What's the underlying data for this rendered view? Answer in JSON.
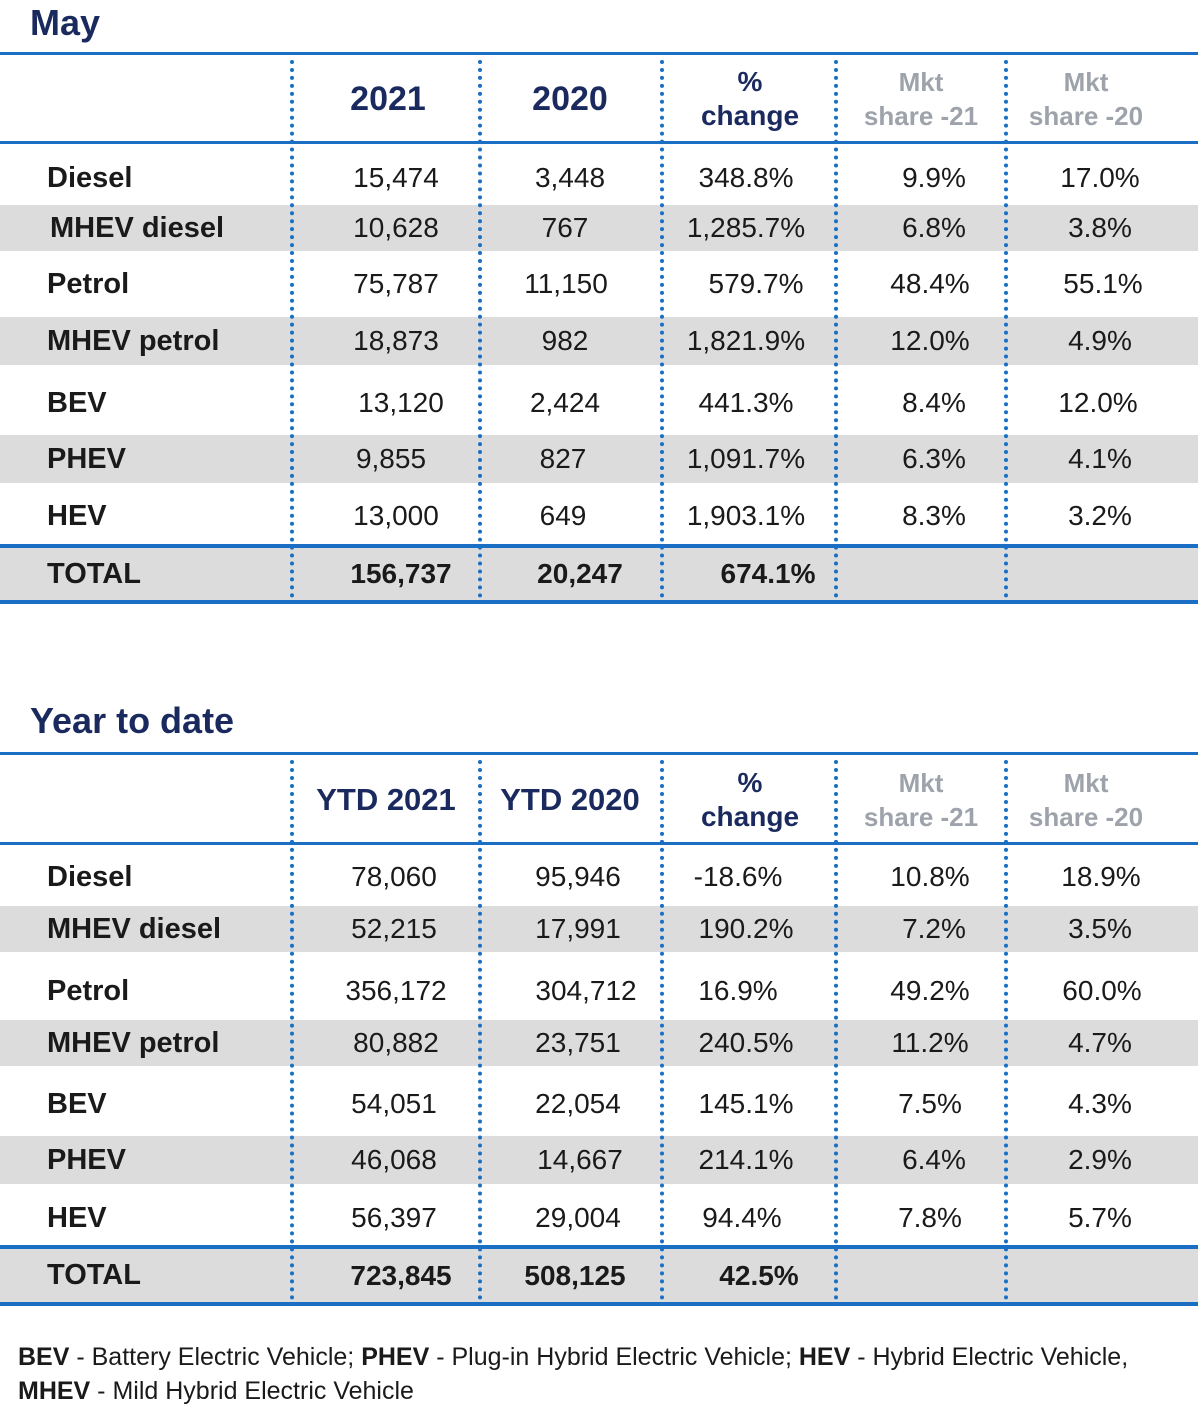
{
  "may": {
    "title": "May",
    "headers": {
      "col1": "2021",
      "col2": "2020",
      "change_line1": "%",
      "change_line2": "change",
      "mkt21_line1": "Mkt",
      "mkt21_line2": "share -21",
      "mkt20_line1": "Mkt",
      "mkt20_line2": "share -20"
    },
    "rows": [
      {
        "label": "Diesel",
        "y2021": "15,474",
        "y2020": "3,448",
        "change": "348.8%",
        "mkt21": "9.9%",
        "mkt20": "17.0%"
      },
      {
        "label": "MHEV diesel",
        "y2021": "10,628",
        "y2020": "767",
        "change": "1,285.7%",
        "mkt21": "6.8%",
        "mkt20": "3.8%"
      },
      {
        "label": "Petrol",
        "y2021": "75,787",
        "y2020": "11,150",
        "change": "579.7%",
        "mkt21": "48.4%",
        "mkt20": "55.1%"
      },
      {
        "label": "MHEV petrol",
        "y2021": "18,873",
        "y2020": "982",
        "change": "1,821.9%",
        "mkt21": "12.0%",
        "mkt20": "4.9%"
      },
      {
        "label": "BEV",
        "y2021": "13,120",
        "y2020": "2,424",
        "change": "441.3%",
        "mkt21": "8.4%",
        "mkt20": "12.0%"
      },
      {
        "label": "PHEV",
        "y2021": "9,855",
        "y2020": "827",
        "change": "1,091.7%",
        "mkt21": "6.3%",
        "mkt20": "4.1%"
      },
      {
        "label": "HEV",
        "y2021": "13,000",
        "y2020": "649",
        "change": "1,903.1%",
        "mkt21": "8.3%",
        "mkt20": "3.2%"
      }
    ],
    "total": {
      "label": "TOTAL",
      "y2021": "156,737",
      "y2020": "20,247",
      "change": "674.1%"
    }
  },
  "ytd": {
    "title": "Year to date",
    "headers": {
      "col1": "YTD 2021",
      "col2": "YTD 2020",
      "change_line1": "%",
      "change_line2": "change",
      "mkt21_line1": "Mkt",
      "mkt21_line2": "share -21",
      "mkt20_line1": "Mkt",
      "mkt20_line2": "share -20"
    },
    "rows": [
      {
        "label": "Diesel",
        "y2021": "78,060",
        "y2020": "95,946",
        "change": "-18.6%",
        "mkt21": "10.8%",
        "mkt20": "18.9%"
      },
      {
        "label": "MHEV diesel",
        "y2021": "52,215",
        "y2020": "17,991",
        "change": "190.2%",
        "mkt21": "7.2%",
        "mkt20": "3.5%"
      },
      {
        "label": "Petrol",
        "y2021": "356,172",
        "y2020": "304,712",
        "change": "16.9%",
        "mkt21": "49.2%",
        "mkt20": "60.0%"
      },
      {
        "label": "MHEV petrol",
        "y2021": "80,882",
        "y2020": "23,751",
        "change": "240.5%",
        "mkt21": "11.2%",
        "mkt20": "4.7%"
      },
      {
        "label": "BEV",
        "y2021": "54,051",
        "y2020": "22,054",
        "change": "145.1%",
        "mkt21": "7.5%",
        "mkt20": "4.3%"
      },
      {
        "label": "PHEV",
        "y2021": "46,068",
        "y2020": "14,667",
        "change": "214.1%",
        "mkt21": "6.4%",
        "mkt20": "2.9%"
      },
      {
        "label": "HEV",
        "y2021": "56,397",
        "y2020": "29,004",
        "change": "94.4%",
        "mkt21": "7.8%",
        "mkt20": "5.7%"
      }
    ],
    "total": {
      "label": "TOTAL",
      "y2021": "723,845",
      "y2020": "508,125",
      "change": "42.5%"
    }
  },
  "footnote": {
    "bev_abbr": "BEV",
    "bev_text": " - Battery Electric Vehicle; ",
    "phev_abbr": "PHEV",
    "phev_text": " - Plug-in Hybrid Electric Vehicle; ",
    "hev_abbr": "HEV",
    "hev_text": " - Hybrid Electric Vehicle,",
    "mhev_abbr": "MHEV",
    "mhev_text": " - Mild Hybrid Electric Vehicle"
  },
  "chart_data": [
    {
      "type": "table",
      "title": "May",
      "columns": [
        "",
        "2021",
        "2020",
        "% change",
        "Mkt share -21",
        "Mkt share -20"
      ],
      "rows": [
        [
          "Diesel",
          15474,
          3448,
          348.8,
          9.9,
          17.0
        ],
        [
          "MHEV diesel",
          10628,
          767,
          1285.7,
          6.8,
          3.8
        ],
        [
          "Petrol",
          75787,
          11150,
          579.7,
          48.4,
          55.1
        ],
        [
          "MHEV petrol",
          18873,
          982,
          1821.9,
          12.0,
          4.9
        ],
        [
          "BEV",
          13120,
          2424,
          441.3,
          8.4,
          12.0
        ],
        [
          "PHEV",
          9855,
          827,
          1091.7,
          6.3,
          4.1
        ],
        [
          "HEV",
          13000,
          649,
          1903.1,
          8.3,
          3.2
        ],
        [
          "TOTAL",
          156737,
          20247,
          674.1,
          null,
          null
        ]
      ]
    },
    {
      "type": "table",
      "title": "Year to date",
      "columns": [
        "",
        "YTD 2021",
        "YTD 2020",
        "% change",
        "Mkt share -21",
        "Mkt share -20"
      ],
      "rows": [
        [
          "Diesel",
          78060,
          95946,
          -18.6,
          10.8,
          18.9
        ],
        [
          "MHEV diesel",
          52215,
          17991,
          190.2,
          7.2,
          3.5
        ],
        [
          "Petrol",
          356172,
          304712,
          16.9,
          49.2,
          60.0
        ],
        [
          "MHEV petrol",
          80882,
          23751,
          240.5,
          11.2,
          4.7
        ],
        [
          "BEV",
          54051,
          22054,
          145.1,
          7.5,
          4.3
        ],
        [
          "PHEV",
          46068,
          14667,
          214.1,
          6.4,
          2.9
        ],
        [
          "HEV",
          56397,
          29004,
          94.4,
          7.8,
          5.7
        ],
        [
          "TOTAL",
          723845,
          508125,
          42.5,
          null,
          null
        ]
      ]
    }
  ]
}
